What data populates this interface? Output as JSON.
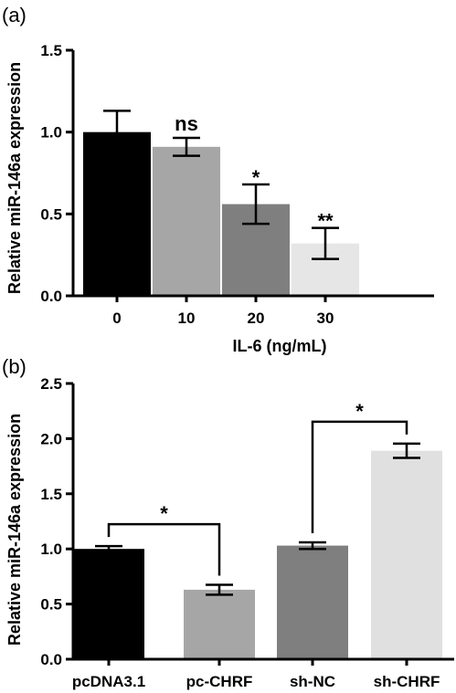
{
  "chart_data": [
    {
      "panel": "(a)",
      "type": "bar",
      "categories": [
        "0",
        "10",
        "20",
        "30"
      ],
      "values": [
        1.0,
        0.91,
        0.56,
        0.32
      ],
      "errors": [
        0.13,
        0.055,
        0.12,
        0.095
      ],
      "colors": [
        "#000000",
        "#a6a6a6",
        "#7f7f7f",
        "#e6e6e6"
      ],
      "significance": [
        "",
        "ns",
        "*",
        "**"
      ],
      "xlabel": "IL-6 (ng/mL)",
      "ylabel": "Relative miR-146a expression",
      "ylim": [
        0,
        1.5
      ],
      "yticks": [
        "0.0",
        "0.5",
        "1.0",
        "1.5"
      ]
    },
    {
      "panel": "(b)",
      "type": "bar",
      "categories": [
        "pcDNA3.1",
        "pc-CHRF",
        "sh-NC",
        "sh-CHRF"
      ],
      "values": [
        1.0,
        0.63,
        1.03,
        1.89
      ],
      "errors": [
        0.025,
        0.045,
        0.03,
        0.065
      ],
      "colors": [
        "#000000",
        "#a6a6a6",
        "#7f7f7f",
        "#e0e0e0"
      ],
      "brackets": [
        {
          "from": 0,
          "to": 1,
          "label": "*"
        },
        {
          "from": 2,
          "to": 3,
          "label": "*"
        }
      ],
      "xlabel": "",
      "ylabel": "Relative miR-146a expression",
      "ylim": [
        0,
        2.5
      ],
      "yticks": [
        "0.0",
        "0.5",
        "1.0",
        "1.5",
        "2.0",
        "2.5"
      ]
    }
  ]
}
